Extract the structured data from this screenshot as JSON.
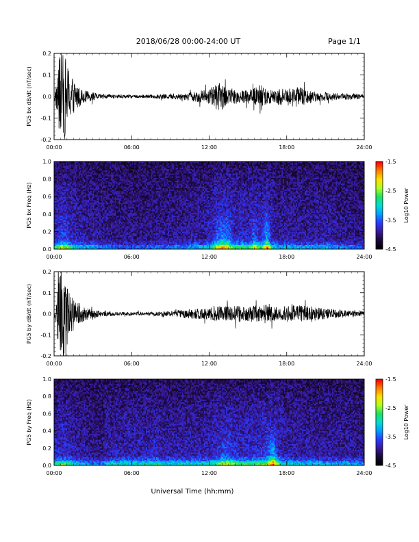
{
  "header": {
    "date_range": "2018/06/28  00:00-24:00 UT",
    "page": "Page 1/1"
  },
  "footer": {
    "xlabel": "Universal Time (hh:mm)"
  },
  "colors": {
    "background": "#ffffff",
    "trace": "#000000",
    "colormap": [
      "#000000",
      "#1a0a3a",
      "#3a1aa0",
      "#2a3cff",
      "#00a0ff",
      "#00e0d0",
      "#20e060",
      "#b0ff20",
      "#ffe000",
      "#ff8000",
      "#ff0000"
    ]
  },
  "chart_data": [
    {
      "type": "line",
      "id": "bx-waveform",
      "ylabel": "PG5 bx dB/dt (nT/sec)",
      "yticks": [
        "0.2",
        "0.1",
        "0.0",
        "-0.1",
        "-0.2"
      ],
      "ylim": [
        -0.2,
        0.2
      ],
      "xticks": [
        "00:00",
        "06:00",
        "12:00",
        "18:00",
        "24:00"
      ],
      "xlim_hours": [
        0,
        24
      ],
      "envelope": {
        "hours": [
          0,
          0.15,
          0.3,
          0.5,
          0.8,
          1.0,
          1.3,
          1.6,
          1.8,
          2.2,
          2.6,
          3.0,
          3.5,
          4.0,
          5.0,
          6.0,
          7.0,
          8.0,
          9.0,
          10.0,
          10.5,
          11.0,
          11.5,
          12.0,
          12.5,
          13.0,
          13.5,
          14.0,
          14.5,
          15.0,
          15.5,
          16.0,
          16.5,
          17.0,
          17.5,
          18.0,
          18.5,
          19.0,
          20.0,
          21.0,
          22.0,
          23.0,
          24.0
        ],
        "amplitude_nT_s": [
          0.02,
          0.05,
          0.15,
          0.2,
          0.2,
          0.16,
          0.1,
          0.08,
          0.06,
          0.03,
          0.025,
          0.02,
          0.012,
          0.01,
          0.008,
          0.008,
          0.008,
          0.01,
          0.012,
          0.015,
          0.02,
          0.025,
          0.03,
          0.035,
          0.06,
          0.065,
          0.03,
          0.035,
          0.03,
          0.035,
          0.04,
          0.055,
          0.04,
          0.03,
          0.045,
          0.03,
          0.05,
          0.045,
          0.025,
          0.02,
          0.015,
          0.015,
          0.01
        ]
      }
    },
    {
      "type": "heatmap",
      "id": "bx-spectrogram",
      "ylabel": "PG5 bx Freq (Hz)",
      "yticks": [
        "1.0",
        "0.8",
        "0.6",
        "0.4",
        "0.2",
        "0.0"
      ],
      "ylim": [
        0.0,
        1.0
      ],
      "xticks": [
        "00:00",
        "06:00",
        "12:00",
        "18:00",
        "24:00"
      ],
      "xlim_hours": [
        0,
        24
      ],
      "colorbar": {
        "label": "Log10 Power",
        "ticks": [
          "-1.5",
          "-2.5",
          "-3.5",
          "-4.5"
        ],
        "range": [
          -4.5,
          -1.5
        ]
      },
      "activity": {
        "hours": [
          0,
          0.5,
          1.0,
          1.5,
          2.0,
          3.0,
          4.0,
          5.0,
          6.0,
          7.0,
          8.0,
          9.0,
          10.0,
          11.0,
          12.0,
          12.5,
          13.0,
          13.5,
          14.0,
          14.5,
          15.0,
          15.5,
          16.0,
          16.5,
          17.0,
          17.5,
          18.0,
          19.0,
          20.0,
          21.0,
          22.0,
          23.0,
          24.0
        ],
        "level": [
          0.7,
          0.8,
          0.8,
          0.6,
          0.5,
          0.45,
          0.35,
          0.3,
          0.3,
          0.3,
          0.35,
          0.35,
          0.4,
          0.45,
          0.55,
          0.8,
          0.9,
          0.85,
          0.7,
          0.75,
          0.65,
          0.85,
          0.7,
          0.95,
          0.55,
          0.45,
          0.5,
          0.45,
          0.45,
          0.5,
          0.4,
          0.35,
          0.3
        ]
      }
    },
    {
      "type": "line",
      "id": "by-waveform",
      "ylabel": "PG5 by dB/dt (nT/sec)",
      "yticks": [
        "0.2",
        "0.1",
        "0.0",
        "-0.1",
        "-0.2"
      ],
      "ylim": [
        -0.2,
        0.2
      ],
      "xticks": [
        "00:00",
        "06:00",
        "12:00",
        "18:00",
        "24:00"
      ],
      "xlim_hours": [
        0,
        24
      ],
      "envelope": {
        "hours": [
          0,
          0.15,
          0.3,
          0.5,
          0.8,
          1.0,
          1.3,
          1.6,
          2.0,
          2.5,
          3.0,
          3.5,
          4.0,
          5.0,
          6.0,
          7.0,
          8.0,
          9.0,
          10.0,
          11.0,
          12.0,
          12.5,
          13.0,
          13.5,
          14.0,
          15.0,
          15.5,
          16.0,
          16.5,
          17.0,
          17.5,
          18.0,
          19.0,
          20.0,
          21.0,
          22.0,
          23.0,
          24.0
        ],
        "amplitude_nT_s": [
          0.02,
          0.05,
          0.15,
          0.2,
          0.2,
          0.15,
          0.1,
          0.07,
          0.05,
          0.03,
          0.02,
          0.015,
          0.012,
          0.008,
          0.008,
          0.008,
          0.01,
          0.015,
          0.02,
          0.025,
          0.03,
          0.04,
          0.035,
          0.035,
          0.04,
          0.035,
          0.04,
          0.035,
          0.05,
          0.035,
          0.03,
          0.04,
          0.04,
          0.035,
          0.025,
          0.02,
          0.015,
          0.01
        ]
      }
    },
    {
      "type": "heatmap",
      "id": "by-spectrogram",
      "ylabel": "PG5 by Freq (Hz)",
      "yticks": [
        "1.0",
        "0.8",
        "0.6",
        "0.4",
        "0.2",
        "0.0"
      ],
      "ylim": [
        0.0,
        1.0
      ],
      "xticks": [
        "00:00",
        "06:00",
        "12:00",
        "18:00",
        "24:00"
      ],
      "xlim_hours": [
        0,
        24
      ],
      "colorbar": {
        "label": "Log10 Power",
        "ticks": [
          "-1.5",
          "-2.5",
          "-3.5",
          "-4.5"
        ],
        "range": [
          -4.5,
          -1.5
        ]
      },
      "activity": {
        "hours": [
          0,
          0.5,
          1.0,
          1.5,
          2.0,
          3.0,
          3.8,
          4.0,
          5.0,
          6.0,
          7.0,
          8.0,
          8.5,
          9.0,
          10.0,
          11.0,
          12.0,
          12.5,
          13.0,
          13.5,
          14.0,
          14.5,
          15.0,
          15.5,
          16.0,
          16.5,
          17.0,
          17.5,
          18.0,
          19.0,
          20.0,
          21.0,
          22.0,
          23.0,
          24.0
        ],
        "level": [
          0.65,
          0.75,
          0.7,
          0.55,
          0.45,
          0.35,
          0.35,
          0.5,
          0.55,
          0.55,
          0.6,
          0.65,
          0.5,
          0.5,
          0.55,
          0.55,
          0.6,
          0.7,
          0.8,
          0.8,
          0.75,
          0.7,
          0.7,
          0.75,
          0.75,
          0.8,
          0.95,
          0.65,
          0.55,
          0.5,
          0.5,
          0.45,
          0.45,
          0.45,
          0.4
        ]
      }
    }
  ]
}
